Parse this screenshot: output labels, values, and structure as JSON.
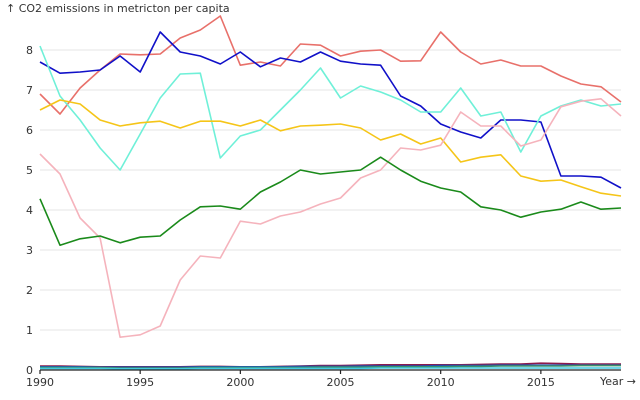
{
  "chart_data": {
    "type": "line",
    "ylabel": "↑ CO2 emissions in metricton per capita",
    "xlabel": "Year →",
    "xlim": [
      1990,
      2019
    ],
    "ylim": [
      0,
      8.9
    ],
    "x_ticks": [
      1990,
      1995,
      2000,
      2005,
      2010,
      2015
    ],
    "y_ticks": [
      0,
      1,
      2,
      3,
      4,
      5,
      6,
      7,
      8
    ],
    "grid": "horizontal",
    "x": [
      1990,
      1991,
      1992,
      1993,
      1994,
      1995,
      1996,
      1997,
      1998,
      1999,
      2000,
      2001,
      2002,
      2003,
      2004,
      2005,
      2006,
      2007,
      2008,
      2009,
      2010,
      2011,
      2012,
      2013,
      2014,
      2015,
      2016,
      2017,
      2018,
      2019
    ],
    "series": [
      {
        "color": "#e8706a",
        "values": [
          6.9,
          6.4,
          7.05,
          7.5,
          7.9,
          7.88,
          7.9,
          8.3,
          8.5,
          8.85,
          7.62,
          7.7,
          7.6,
          8.15,
          8.12,
          7.85,
          7.97,
          8.0,
          7.72,
          7.73,
          8.45,
          7.95,
          7.65,
          7.75,
          7.6,
          7.6,
          7.35,
          7.15,
          7.08,
          6.7
        ]
      },
      {
        "color": "#1010c8",
        "values": [
          7.7,
          7.42,
          7.45,
          7.5,
          7.85,
          7.45,
          8.45,
          7.95,
          7.85,
          7.65,
          7.95,
          7.58,
          7.8,
          7.7,
          7.95,
          7.72,
          7.65,
          7.62,
          6.85,
          6.6,
          6.15,
          5.95,
          5.8,
          6.25,
          6.25,
          6.2,
          4.85,
          4.85,
          4.82,
          4.55
        ]
      },
      {
        "color": "#6ff0d8",
        "values": [
          8.1,
          6.85,
          6.25,
          5.55,
          5.0,
          5.9,
          6.8,
          7.4,
          7.42,
          5.3,
          5.85,
          6.0,
          6.5,
          7.0,
          7.55,
          6.8,
          7.1,
          6.95,
          6.75,
          6.45,
          6.45,
          7.05,
          6.35,
          6.45,
          5.45,
          6.35,
          6.6,
          6.75,
          6.6,
          6.65
        ]
      },
      {
        "color": "#f5c518",
        "values": [
          6.5,
          6.75,
          6.65,
          6.25,
          6.1,
          6.18,
          6.22,
          6.05,
          6.22,
          6.22,
          6.1,
          6.25,
          5.98,
          6.1,
          6.12,
          6.15,
          6.05,
          5.75,
          5.9,
          5.65,
          5.8,
          5.2,
          5.32,
          5.38,
          4.85,
          4.72,
          4.75,
          4.58,
          4.42,
          4.35
        ]
      },
      {
        "color": "#f5b3bc",
        "values": [
          5.4,
          4.9,
          3.8,
          3.3,
          0.82,
          0.88,
          1.1,
          2.25,
          2.85,
          2.8,
          3.72,
          3.65,
          3.85,
          3.95,
          4.15,
          4.3,
          4.8,
          5.0,
          5.55,
          5.5,
          5.62,
          6.45,
          6.1,
          6.1,
          5.6,
          5.75,
          6.58,
          6.72,
          6.78,
          6.35
        ]
      },
      {
        "color": "#1a8a1a",
        "values": [
          4.28,
          3.12,
          3.28,
          3.35,
          3.18,
          3.32,
          3.35,
          3.75,
          4.08,
          4.1,
          4.02,
          4.45,
          4.7,
          5.0,
          4.9,
          4.95,
          5.0,
          5.32,
          5.0,
          4.72,
          4.55,
          4.45,
          4.08,
          4.0,
          3.82,
          3.95,
          4.02,
          4.2,
          4.02,
          4.05
        ]
      },
      {
        "color": "#8b1a4a",
        "values": [
          0.1,
          0.1,
          0.09,
          0.08,
          0.08,
          0.08,
          0.08,
          0.08,
          0.09,
          0.09,
          0.08,
          0.08,
          0.09,
          0.1,
          0.11,
          0.11,
          0.12,
          0.13,
          0.13,
          0.13,
          0.13,
          0.13,
          0.14,
          0.15,
          0.15,
          0.17,
          0.16,
          0.15,
          0.15,
          0.15
        ]
      },
      {
        "color": "#2050b0",
        "values": [
          0.08,
          0.08,
          0.08,
          0.07,
          0.07,
          0.07,
          0.07,
          0.07,
          0.08,
          0.08,
          0.08,
          0.08,
          0.08,
          0.09,
          0.09,
          0.09,
          0.1,
          0.1,
          0.1,
          0.1,
          0.11,
          0.11,
          0.11,
          0.12,
          0.12,
          0.12,
          0.12,
          0.12,
          0.12,
          0.12
        ]
      },
      {
        "color": "#3a8f6a",
        "values": [
          0.06,
          0.06,
          0.06,
          0.06,
          0.05,
          0.05,
          0.05,
          0.05,
          0.06,
          0.06,
          0.06,
          0.06,
          0.06,
          0.06,
          0.07,
          0.07,
          0.07,
          0.08,
          0.08,
          0.08,
          0.08,
          0.09,
          0.09,
          0.1,
          0.1,
          0.1,
          0.1,
          0.11,
          0.11,
          0.11
        ]
      },
      {
        "color": "#40c8e0",
        "values": [
          0.04,
          0.04,
          0.04,
          0.04,
          0.03,
          0.03,
          0.03,
          0.03,
          0.04,
          0.04,
          0.04,
          0.04,
          0.04,
          0.04,
          0.04,
          0.04,
          0.04,
          0.05,
          0.05,
          0.05,
          0.05,
          0.05,
          0.05,
          0.05,
          0.05,
          0.05,
          0.05,
          0.05,
          0.05,
          0.05
        ]
      }
    ]
  }
}
